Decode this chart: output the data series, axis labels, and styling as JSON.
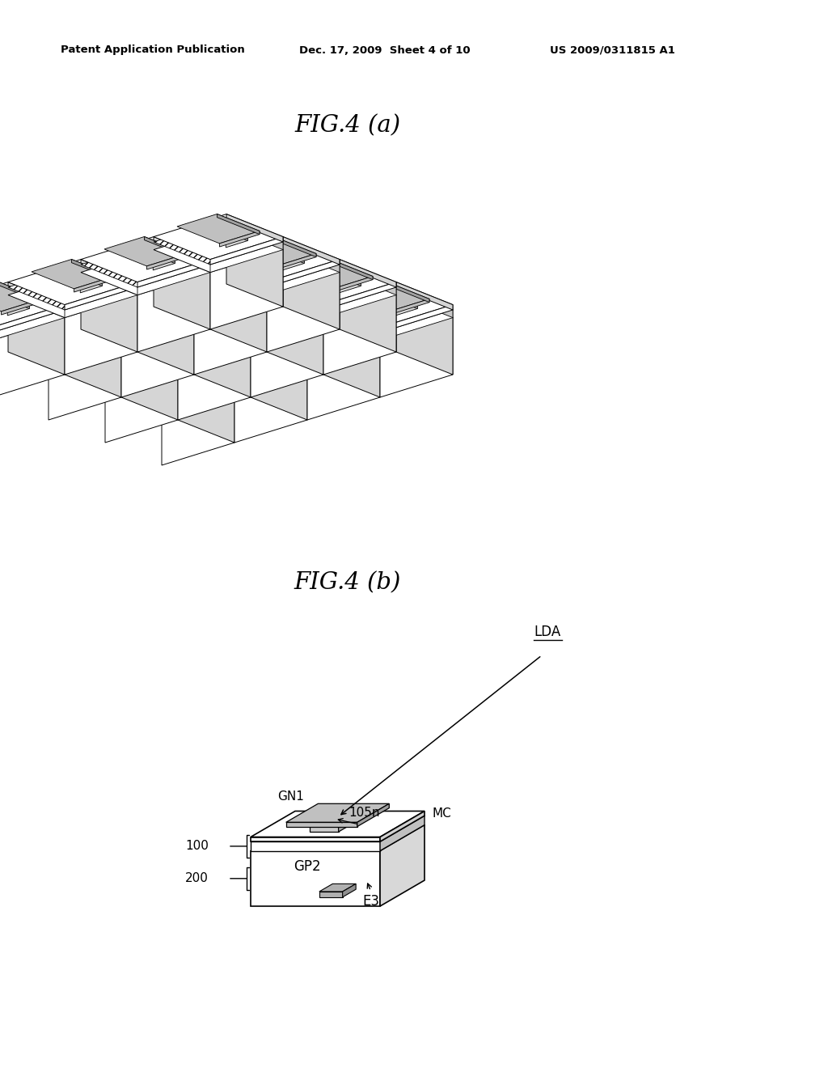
{
  "background_color": "#ffffff",
  "header_left": "Patent Application Publication",
  "header_mid": "Dec. 17, 2009  Sheet 4 of 10",
  "header_right": "US 2009/0311815 A1",
  "fig4a_title": "FIG.4 (a)",
  "fig4b_title": "FIG.4 (b)",
  "label_LDA": "LDA",
  "label_GN1": "GN1",
  "label_105n": "105n",
  "label_MC": "MC",
  "label_100": "100",
  "label_200": "200",
  "label_GP2": "GP2",
  "label_E3": "E3",
  "line_color": "#000000"
}
